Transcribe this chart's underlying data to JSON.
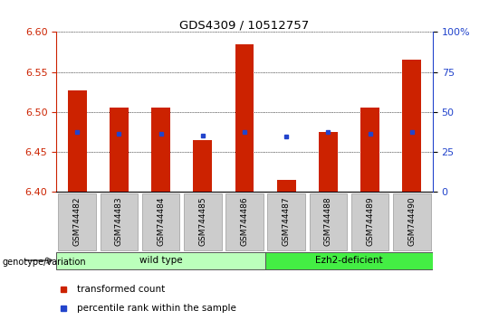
{
  "title": "GDS4309 / 10512757",
  "samples": [
    "GSM744482",
    "GSM744483",
    "GSM744484",
    "GSM744485",
    "GSM744486",
    "GSM744487",
    "GSM744488",
    "GSM744489",
    "GSM744490"
  ],
  "bar_values": [
    6.527,
    6.505,
    6.505,
    6.465,
    6.585,
    6.415,
    6.475,
    6.505,
    6.565
  ],
  "bar_baseline": 6.4,
  "bar_color": "#cc2200",
  "dot_values_left": [
    6.475,
    6.473,
    6.473,
    6.471,
    6.475,
    6.469,
    6.475,
    6.473,
    6.475
  ],
  "dot_color": "#2244cc",
  "ylim_left": [
    6.4,
    6.6
  ],
  "ylim_right": [
    0,
    100
  ],
  "yticks_left": [
    6.4,
    6.45,
    6.5,
    6.55,
    6.6
  ],
  "yticks_right": [
    0,
    25,
    50,
    75,
    100
  ],
  "ytick_labels_right": [
    "0",
    "25",
    "50",
    "75",
    "100%"
  ],
  "left_axis_color": "#cc2200",
  "right_axis_color": "#2244cc",
  "groups": [
    {
      "label": "wild type",
      "start": 0,
      "end": 4,
      "color": "#bbffbb"
    },
    {
      "label": "Ezh2-deficient",
      "start": 5,
      "end": 8,
      "color": "#44ee44"
    }
  ],
  "group_label": "genotype/variation",
  "legend_items": [
    {
      "label": "transformed count",
      "color": "#cc2200"
    },
    {
      "label": "percentile rank within the sample",
      "color": "#2244cc"
    }
  ],
  "tick_bg_color": "#cccccc",
  "bar_width": 0.45
}
